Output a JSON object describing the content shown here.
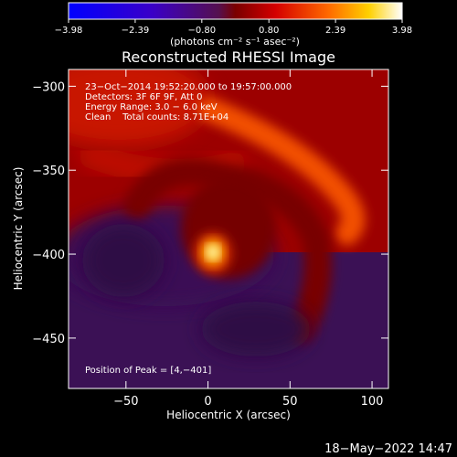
{
  "chart_data": {
    "type": "heatmap",
    "title": "Reconstructed RHESSI Image",
    "xlabel": "Heliocentric X (arcsec)",
    "ylabel": "Heliocentric Y (arcsec)",
    "xlim": [
      -85,
      110
    ],
    "ylim": [
      -480,
      -290
    ],
    "x_ticks": [
      -50,
      0,
      50,
      100
    ],
    "x_tick_labels": [
      "−50",
      "0",
      "50",
      "100"
    ],
    "y_ticks": [
      -300,
      -350,
      -400,
      -450
    ],
    "y_tick_labels": [
      "−300",
      "−350",
      "−400",
      "−450"
    ],
    "colorbar": {
      "range": [
        -3.98,
        3.98
      ],
      "ticks": [
        -3.98,
        -2.39,
        -0.8,
        0.8,
        2.39,
        3.98
      ],
      "tick_labels": [
        "−3.98",
        "−2.39",
        "−0.80",
        "0.80",
        "2.39",
        "3.98"
      ],
      "unit_label": "(photons cm⁻² s⁻¹ asec⁻²)",
      "colormap": "blue-purple-red-orange-yellow-white"
    },
    "annotations": [
      "23−Oct−2014 19:52:20.000 to 19:57:00.000",
      "Detectors: 3F 6F 9F, Att 0",
      "Energy Range: 3.0 − 6.0 keV",
      "Clean    Total counts: 8.71E+04"
    ],
    "peak_label": "Position of Peak = [4,−401]",
    "peak": {
      "x": 4,
      "y": -401
    },
    "timestamp": "18−May−2022 14:47"
  }
}
